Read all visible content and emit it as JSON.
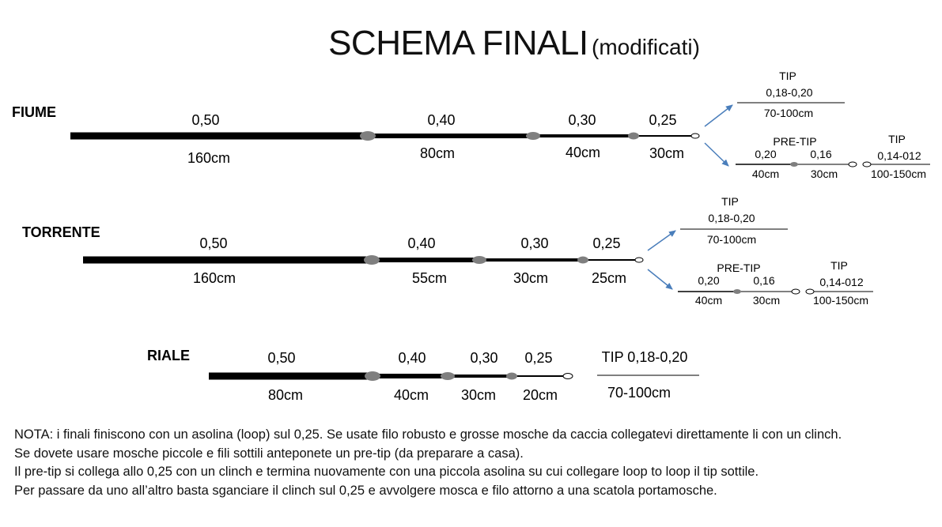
{
  "title": {
    "main": "SCHEMA FINALI",
    "sub": "(modificati)"
  },
  "fiume": {
    "label": "FIUME",
    "diameters": [
      "0,50",
      "0,40",
      "0,30",
      "0,25"
    ],
    "lengths": [
      "160cm",
      "80cm",
      "40cm",
      "30cm"
    ],
    "tip": {
      "label": "TIP",
      "diameter": "0,18-0,20",
      "length": "70-100cm"
    },
    "pretip": {
      "label": "PRE-TIP",
      "d1": "0,20",
      "d2": "0,16",
      "l1": "40cm",
      "l2": "30cm"
    },
    "tip2": {
      "label": "TIP",
      "diameter": "0,14-012",
      "length": "100-150cm"
    }
  },
  "torrente": {
    "label": "TORRENTE",
    "diameters": [
      "0,50",
      "0,40",
      "0,30",
      "0,25"
    ],
    "lengths": [
      "160cm",
      "55cm",
      "30cm",
      "25cm"
    ],
    "tip": {
      "label": "TIP",
      "diameter": "0,18-0,20",
      "length": "70-100cm"
    },
    "pretip": {
      "label": "PRE-TIP",
      "d1": "0,20",
      "d2": "0,16",
      "l1": "40cm",
      "l2": "30cm"
    },
    "tip2": {
      "label": "TIP",
      "diameter": "0,14-012",
      "length": "100-150cm"
    }
  },
  "riale": {
    "label": "RIALE",
    "diameters": [
      "0,50",
      "0,40",
      "0,30",
      "0,25"
    ],
    "lengths": [
      "80cm",
      "40cm",
      "30cm",
      "20cm"
    ],
    "tip": {
      "label": "TIP 0,18-0,20",
      "length": "70-100cm"
    }
  },
  "note": [
    "NOTA: i finali finiscono con un asolina (loop) sul 0,25. Se usate filo robusto e grosse mosche da caccia collegatevi direttamente li con un clinch.",
    "Se dovete usare mosche piccole e fili sottili anteponete un pre-tip (da preparare a casa).",
    "Il pre-tip si collega allo 0,25 con un clinch e termina nuovamente con una piccola asolina su cui collegare loop to loop il tip sottile.",
    "Per passare da uno all’altro basta sganciare il clinch sul 0,25 e avvolgere mosca e filo attorno a una scatola portamosche."
  ],
  "colors": {
    "line": "#000000",
    "knot": "#7f7f7f",
    "arrow": "#4a7ebb"
  }
}
